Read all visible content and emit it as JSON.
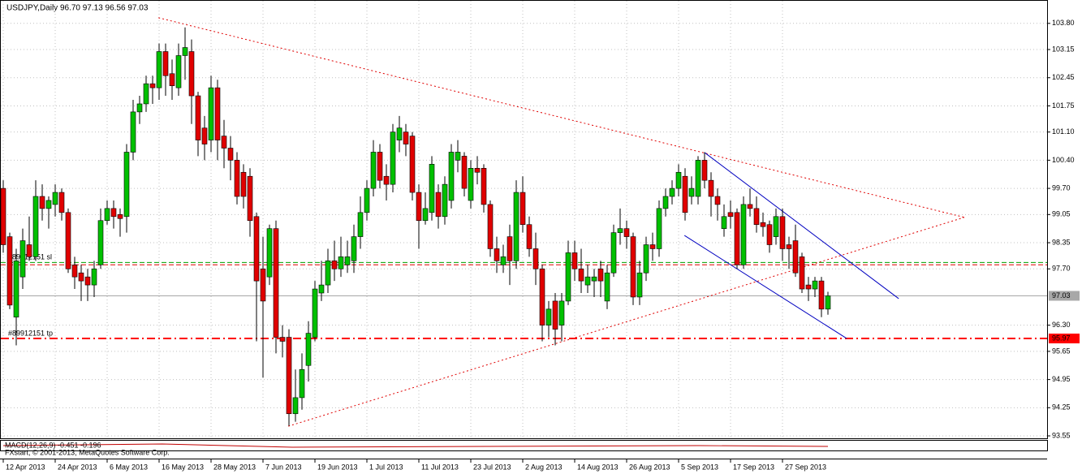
{
  "chart_data": {
    "type": "candlestick",
    "title": "USDJPY,Daily  96.70 97.13 96.56 97.03",
    "footer": "FXstart, © 2001-2013, MetaQuotes Software Corp.",
    "indicator_label": "MACD(12,26,9) -0.451 -0.196",
    "categories": [
      "12 Apr 2013",
      null,
      null,
      null,
      null,
      null,
      null,
      null,
      "24 Apr 2013",
      null,
      null,
      null,
      null,
      null,
      null,
      null,
      "6 May 2013",
      null,
      null,
      null,
      null,
      null,
      null,
      null,
      "16 May 2013",
      null,
      null,
      null,
      null,
      null,
      null,
      null,
      "28 May 2013",
      null,
      null,
      null,
      null,
      null,
      null,
      null,
      "7 Jun 2013",
      null,
      null,
      null,
      null,
      null,
      null,
      null,
      "19 Jun 2013",
      null,
      null,
      null,
      null,
      null,
      null,
      null,
      "1 Jul 2013",
      null,
      null,
      null,
      null,
      null,
      null,
      null,
      "11 Jul 2013",
      null,
      null,
      null,
      null,
      null,
      null,
      null,
      "23 Jul 2013",
      null,
      null,
      null,
      null,
      null,
      null,
      null,
      "2 Aug 2013",
      null,
      null,
      null,
      null,
      null,
      null,
      null,
      "14 Aug 2013",
      null,
      null,
      null,
      null,
      null,
      null,
      null,
      "26 Aug 2013",
      null,
      null,
      null,
      null,
      null,
      null,
      null,
      "5 Sep 2013",
      null,
      null,
      null,
      null,
      null,
      null,
      null,
      "17 Sep 2013",
      null,
      null,
      null,
      null,
      null,
      null,
      null,
      "27 Sep 2013",
      null,
      null,
      null,
      null,
      null,
      null,
      null
    ],
    "open": [
      99.7,
      98.5,
      96.5,
      97.5,
      98.3,
      98.0,
      99.5,
      99.2,
      99.3,
      99.6,
      99.1,
      97.8,
      97.6,
      97.5,
      97.3,
      97.8,
      98.9,
      99.2,
      99.05,
      99.0,
      100.6,
      101.6,
      101.8,
      102.3,
      102.2,
      103.1,
      102.55,
      102.2,
      103.0,
      103.1,
      102.0,
      101.2,
      100.9,
      102.2,
      101.0,
      100.7,
      100.4,
      100.1,
      100.0,
      99.0,
      97.7,
      97.5,
      98.7,
      96.0,
      96.0,
      94.1,
      94.5,
      95.3,
      96.0,
      97.1,
      97.3,
      97.9,
      97.7,
      97.8,
      97.9,
      98.5,
      99.1,
      99.7,
      100.6,
      100.0,
      99.8,
      100.9,
      101.1,
      101.0,
      99.6,
      98.9,
      99.1,
      99.6,
      99.0,
      99.4,
      100.4,
      100.5,
      99.4,
      100.2,
      100.2,
      99.3,
      98.2,
      97.8,
      98.5,
      97.9,
      99.6,
      98.8,
      98.2,
      97.7,
      96.3,
      96.9,
      96.3,
      96.9,
      98.1,
      97.7,
      97.3,
      97.4,
      97.7,
      96.9,
      97.6,
      98.6,
      98.7,
      98.5,
      97.0,
      97.6,
      98.3,
      98.2,
      99.2,
      99.5,
      99.7,
      100.0,
      99.5,
      99.5,
      100.4,
      99.9,
      99.5,
      98.7,
      99.1,
      99.1,
      97.8,
      99.3,
      99.2,
      98.85,
      98.8,
      98.5,
      99.0,
      98.3,
      98.4,
      98.0,
      97.3,
      97.2,
      97.4,
      96.7
    ],
    "high": [
      99.9,
      98.6,
      98.2,
      98.7,
      99.0,
      99.9,
      99.8,
      99.5,
      99.8,
      99.7,
      99.2,
      98.0,
      97.8,
      97.7,
      97.9,
      99.2,
      99.4,
      99.4,
      99.2,
      100.8,
      101.9,
      102.0,
      102.5,
      102.5,
      103.3,
      103.3,
      102.9,
      103.3,
      103.7,
      103.4,
      102.1,
      101.5,
      102.5,
      102.4,
      101.4,
      101.0,
      100.6,
      100.3,
      100.2,
      99.1,
      98.5,
      98.8,
      98.9,
      96.3,
      96.2,
      95.2,
      95.6,
      96.4,
      97.4,
      97.9,
      98.2,
      98.4,
      98.5,
      98.4,
      98.8,
      99.5,
      99.9,
      100.9,
      100.8,
      100.3,
      101.3,
      101.5,
      101.3,
      101.1,
      99.8,
      99.6,
      100.5,
      99.8,
      100.0,
      100.8,
      100.9,
      100.6,
      100.4,
      100.5,
      100.3,
      99.4,
      98.5,
      98.3,
      98.8,
      99.9,
      100.0,
      99.0,
      98.6,
      97.8,
      96.9,
      97.1,
      97.1,
      98.4,
      98.4,
      98.2,
      97.8,
      97.7,
      97.9,
      97.8,
      98.8,
      99.2,
      98.9,
      98.6,
      97.9,
      98.5,
      98.6,
      99.4,
      99.7,
      99.9,
      100.3,
      100.2,
      100.0,
      100.5,
      100.6,
      100.1,
      99.7,
      99.3,
      99.4,
      99.2,
      99.5,
      99.7,
      99.5,
      99.1,
      98.9,
      99.2,
      99.2,
      98.5,
      98.8,
      98.1,
      97.5,
      97.5,
      97.5,
      97.13
    ],
    "low": [
      98.1,
      96.7,
      95.8,
      97.2,
      97.9,
      97.9,
      98.9,
      98.7,
      99.0,
      98.9,
      97.6,
      97.2,
      96.9,
      96.9,
      97.0,
      97.7,
      98.8,
      98.7,
      98.5,
      98.6,
      100.4,
      101.3,
      101.6,
      101.8,
      101.9,
      102.0,
      101.9,
      102.0,
      102.4,
      101.3,
      100.5,
      100.4,
      100.6,
      100.4,
      100.2,
      99.9,
      99.3,
      99.2,
      98.5,
      95.9,
      95.0,
      97.3,
      95.6,
      95.5,
      93.8,
      93.9,
      94.2,
      94.9,
      95.9,
      96.9,
      97.1,
      97.4,
      97.5,
      97.6,
      97.6,
      98.2,
      98.9,
      99.5,
      99.7,
      99.4,
      99.6,
      100.6,
      100.5,
      99.4,
      98.2,
      98.8,
      98.9,
      98.7,
      98.8,
      99.2,
      100.1,
      99.5,
      99.2,
      99.8,
      99.1,
      98.0,
      97.6,
      97.6,
      97.3,
      97.7,
      98.6,
      98.0,
      97.3,
      95.9,
      96.0,
      95.8,
      95.9,
      96.8,
      97.4,
      97.1,
      97.1,
      97.0,
      97.0,
      96.7,
      97.5,
      98.3,
      98.2,
      96.8,
      96.8,
      97.4,
      97.9,
      98.0,
      99.0,
      99.3,
      99.5,
      98.9,
      99.3,
      99.3,
      99.7,
      99.0,
      98.9,
      98.5,
      98.7,
      97.7,
      97.7,
      99.0,
      98.6,
      98.5,
      98.1,
      98.3,
      97.9,
      97.7,
      97.5,
      97.1,
      96.9,
      97.0,
      96.5,
      96.56
    ],
    "close": [
      98.3,
      96.8,
      97.9,
      98.4,
      98.0,
      99.5,
      99.2,
      99.4,
      99.6,
      99.1,
      97.7,
      97.5,
      97.4,
      97.3,
      97.7,
      98.9,
      99.2,
      99.0,
      98.95,
      100.6,
      101.6,
      101.8,
      102.3,
      102.2,
      103.1,
      102.5,
      102.25,
      103.0,
      103.2,
      102.0,
      100.9,
      100.8,
      102.2,
      100.9,
      100.7,
      100.4,
      99.5,
      99.5,
      98.9,
      97.4,
      96.9,
      98.7,
      96.0,
      95.9,
      94.1,
      94.5,
      95.2,
      96.1,
      97.2,
      97.3,
      97.9,
      97.7,
      98.0,
      98.0,
      98.5,
      99.1,
      99.7,
      100.6,
      99.9,
      99.8,
      101.1,
      101.2,
      100.8,
      99.6,
      98.9,
      99.2,
      100.3,
      99.0,
      99.8,
      100.6,
      100.6,
      99.7,
      100.2,
      100.1,
      99.3,
      98.2,
      97.9,
      98.0,
      97.9,
      99.6,
      98.8,
      98.2,
      97.7,
      96.3,
      96.7,
      96.2,
      96.9,
      98.1,
      97.7,
      97.4,
      97.5,
      97.5,
      97.4,
      97.6,
      98.6,
      98.7,
      98.5,
      97.0,
      97.6,
      98.3,
      98.2,
      99.2,
      99.5,
      99.7,
      100.1,
      99.1,
      99.7,
      100.4,
      99.9,
      99.5,
      99.3,
      99.0,
      99.0,
      97.8,
      99.3,
      99.2,
      98.8,
      98.75,
      98.3,
      99.0,
      98.2,
      98.2,
      97.6,
      97.2,
      97.2,
      97.4,
      96.7,
      97.03
    ],
    "up_color": "#00c000",
    "down_color": "#e00000",
    "ylim": [
      93.49,
      104.28
    ],
    "yticks": [
      {
        "value": 103.8,
        "label": "103.80"
      },
      103.15,
      102.45,
      101.75,
      {
        "value": 101.1,
        "label": "101.10"
      },
      {
        "value": 100.4,
        "label": "100.40"
      },
      {
        "value": 99.7,
        "label": "99.70"
      },
      99.05,
      98.35,
      {
        "value": 97.7,
        "label": "97.70"
      },
      {
        "value": 96.3,
        "label": "96.30"
      },
      95.65,
      94.95,
      94.25,
      93.55
    ],
    "grid": true,
    "levels": [
      {
        "name": "#89912151 sl",
        "value": 97.86,
        "color": "#00a000",
        "style": "dash"
      },
      {
        "value": 97.8,
        "color": "#e00000",
        "style": "dash"
      },
      {
        "value": 97.03,
        "color": "#a8a8a8",
        "style": "solid",
        "label": "97.03",
        "text_color": "#000000"
      },
      {
        "name": "#89912151 tp",
        "value": 95.97,
        "color": "#ff0000",
        "style": "dashdot",
        "label": "95.97",
        "text_color": "#ffffff"
      }
    ],
    "lines": [
      {
        "color": "#e00000",
        "style": "dot",
        "from": [
          23.9,
          103.94
        ],
        "to": [
          148,
          98.98
        ]
      },
      {
        "color": "#e00000",
        "style": "dot",
        "from": [
          43.9,
          93.79
        ],
        "to": [
          148,
          98.98
        ]
      },
      {
        "color": "#0000c0",
        "style": "solid",
        "from": [
          108,
          100.59
        ],
        "to": [
          137.9,
          96.96
        ]
      },
      {
        "color": "#0000c0",
        "style": "solid",
        "from": [
          104.9,
          98.53
        ],
        "to": [
          129.9,
          95.97
        ]
      }
    ]
  }
}
